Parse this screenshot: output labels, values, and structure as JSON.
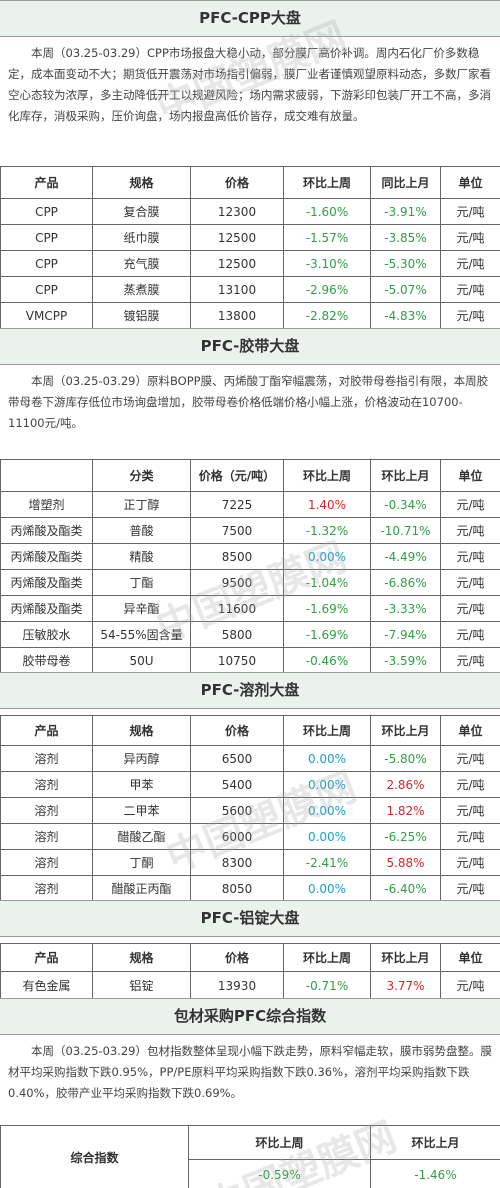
{
  "watermark": "中国塑膜网",
  "sections": [
    {
      "title": "PFC-CPP大盘",
      "text": "本周（03.25-03.29）CPP市场报盘大稳小动，部分膜厂高价补调。周内石化厂价多数稳定，成本面变动不大；期货低开震荡对市场指引偏弱，膜厂业者谨慎观望原料动态，多数厂家看空心态较为浓厚，多主动降低开工以规避风险；场内需求疲弱，下游彩印包装厂开工不高，多消化库存，消极采购，压价询盘，场内报盘高低价皆存，成交难有放量。",
      "table": {
        "headers": [
          "产品",
          "规格",
          "价格",
          "环比上周",
          "同比上月",
          "单位"
        ],
        "rows": [
          [
            "CPP",
            "复合膜",
            "12300",
            "-1.60%",
            "-3.91%",
            "元/吨"
          ],
          [
            "CPP",
            "纸巾膜",
            "12500",
            "-1.57%",
            "-3.85%",
            "元/吨"
          ],
          [
            "CPP",
            "充气膜",
            "12500",
            "-3.10%",
            "-5.30%",
            "元/吨"
          ],
          [
            "CPP",
            "蒸煮膜",
            "13100",
            "-2.96%",
            "-5.07%",
            "元/吨"
          ],
          [
            "VMCPP",
            "镀铝膜",
            "13800",
            "-2.82%",
            "-4.83%",
            "元/吨"
          ]
        ]
      }
    },
    {
      "title": "PFC-胶带大盘",
      "text": "本周（03.25-03.29）原料BOPP膜、丙烯酸丁酯窄幅震荡，对胶带母卷指引有限，本周胶带母卷下游库存低位市场询盘增加，胶带母卷价格低端价格小幅上涨，价格波动在10700-11100元/吨。",
      "table": {
        "headers": [
          null,
          "分类",
          "价格（元/吨）",
          "环比上周",
          "环比上月",
          "单位"
        ],
        "rows": [
          [
            "增塑剂",
            "正丁醇",
            "7225",
            "1.40%",
            "-0.34%",
            "元/吨"
          ],
          [
            "丙烯酸及酯类",
            "普酸",
            "7500",
            "-1.32%",
            "-10.71%",
            "元/吨"
          ],
          [
            "丙烯酸及酯类",
            "精酸",
            "8500",
            "0.00%",
            "-4.49%",
            "元/吨"
          ],
          [
            "丙烯酸及酯类",
            "丁酯",
            "9500",
            "-1.04%",
            "-6.86%",
            "元/吨"
          ],
          [
            "丙烯酸及酯类",
            "异辛酯",
            "11600",
            "-1.69%",
            "-3.33%",
            "元/吨"
          ],
          [
            "压敏胶水",
            "54-55%固含量",
            "5800",
            "-1.69%",
            "-7.94%",
            "元/吨"
          ],
          [
            "胶带母卷",
            "50U",
            "10750",
            "-0.46%",
            "-3.59%",
            "元/吨"
          ]
        ]
      }
    },
    {
      "title": "PFC-溶剂大盘",
      "table": {
        "headers": [
          "产品",
          "规格",
          "价格",
          "环比上周",
          "环比上月",
          "单位"
        ],
        "rows": [
          [
            "溶剂",
            "异丙醇",
            "6500",
            "0.00%",
            "-5.80%",
            "元/吨"
          ],
          [
            "溶剂",
            "甲苯",
            "5400",
            "0.00%",
            "2.86%",
            "元/吨"
          ],
          [
            "溶剂",
            "二甲苯",
            "5600",
            "0.00%",
            "1.82%",
            "元/吨"
          ],
          [
            "溶剂",
            "醋酸乙酯",
            "6000",
            "0.00%",
            "-6.25%",
            "元/吨"
          ],
          [
            "溶剂",
            "丁酮",
            "8300",
            "-2.41%",
            "5.88%",
            "元/吨"
          ],
          [
            "溶剂",
            "醋酸正丙酯",
            "8050",
            "0.00%",
            "-6.40%",
            "元/吨"
          ]
        ]
      }
    },
    {
      "title": "PFC-铝锭大盘",
      "table": {
        "headers": [
          "产品",
          "规格",
          "价格",
          "环比上周",
          "环比上月",
          "单位"
        ],
        "rows": [
          [
            "有色金属",
            "铝锭",
            "13930",
            "-0.71%",
            "3.77%",
            "元/吨"
          ]
        ]
      }
    },
    {
      "title": "包材采购PFC综合指数",
      "text": "本周（03.25-03.29）包材指数整体呈现小幅下跌走势，原料窄幅走软，膜市弱势盘整。膜材平均采购指数下跌0.95%，PP/PE原料平均采购指数下跌0.36%，溶剂平均采购指数下跌0.40%，胶带产业平均采购指数下跌0.69%。",
      "index_table": {
        "label": "综合指数",
        "headers": [
          "环比上周",
          "环比上月"
        ],
        "values": [
          "-0.59%",
          "-1.46%"
        ]
      }
    }
  ]
}
